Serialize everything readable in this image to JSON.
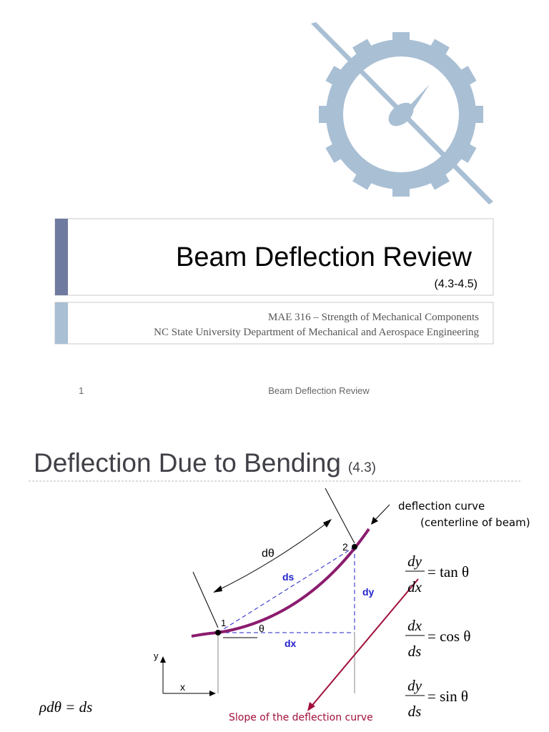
{
  "slide1": {
    "title": "Beam Deflection Review",
    "section": "(4.3-4.5)",
    "course": "MAE 316 – Strength of Mechanical Components",
    "department": "NC State University Department of Mechanical and Aerospace Engineering",
    "footer": {
      "page": "1",
      "title": "Beam Deflection Review"
    }
  },
  "slide2": {
    "title": "Deflection Due to Bending",
    "section": "(4.3)",
    "diagram": {
      "curve_label": "deflection curve",
      "curve_note": "(centerline of beam)",
      "angle": "dθ",
      "ds": "ds",
      "dy": "dy",
      "dx": "dx",
      "theta": "θ",
      "point1": "1",
      "point2": "2",
      "y_axis": "y",
      "x_axis": "x",
      "slope_label": "Slope of the deflection curve"
    },
    "equations": [
      {
        "num": "dy",
        "den": "dx",
        "rhs": "= tan θ"
      },
      {
        "num": "dx",
        "den": "ds",
        "rhs": "= cos θ"
      },
      {
        "num": "dy",
        "den": "ds",
        "rhs": "= sin θ"
      }
    ],
    "curvature": "ρdθ = ds"
  }
}
